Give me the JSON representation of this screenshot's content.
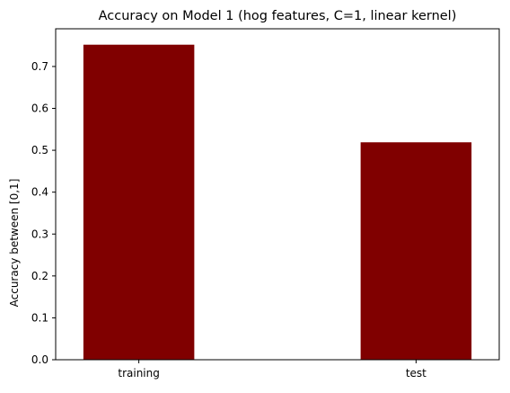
{
  "chart_data": {
    "type": "bar",
    "title": "Accuracy on Model 1 (hog features, C=1, linear kernel)",
    "xlabel": "",
    "ylabel": "Accuracy between [0,1]",
    "categories": [
      "training",
      "test"
    ],
    "values": [
      0.752,
      0.519
    ],
    "ylim": [
      0,
      0.79
    ],
    "yticks": [
      "0.0",
      "0.1",
      "0.2",
      "0.3",
      "0.4",
      "0.5",
      "0.6",
      "0.7"
    ],
    "grid": false,
    "bar_color": "#800000"
  }
}
